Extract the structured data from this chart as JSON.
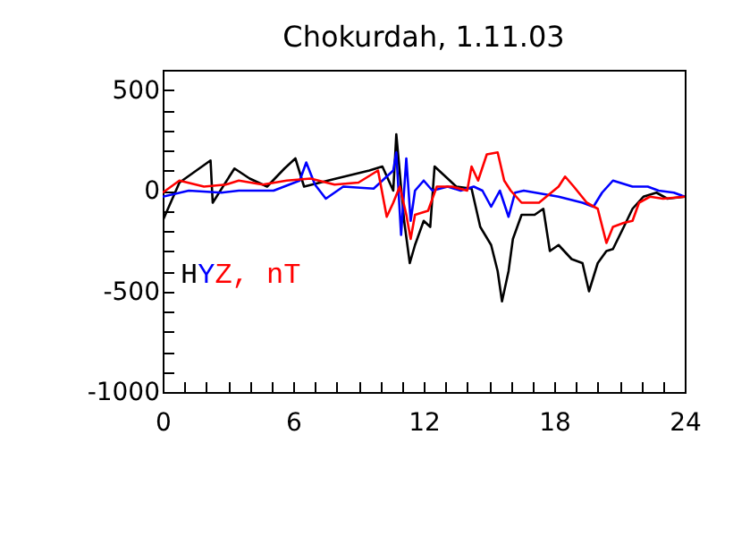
{
  "chart_data": {
    "type": "line",
    "title": "Chokurdah, 1.11.03",
    "xlim": [
      0,
      24
    ],
    "ylim": [
      -1000,
      600
    ],
    "xticks": [
      0,
      {
        "value": 1,
        "label": null
      },
      {
        "value": 2,
        "label": null
      },
      {
        "value": 3,
        "label": null
      },
      {
        "value": 4,
        "label": null
      },
      {
        "value": 5,
        "label": null
      },
      6,
      {
        "value": 7,
        "label": null
      },
      {
        "value": 8,
        "label": null
      },
      {
        "value": 9,
        "label": null
      },
      {
        "value": 10,
        "label": null
      },
      {
        "value": 11,
        "label": null
      },
      12,
      {
        "value": 13,
        "label": null
      },
      {
        "value": 14,
        "label": null
      },
      {
        "value": 15,
        "label": null
      },
      {
        "value": 16,
        "label": null
      },
      {
        "value": 17,
        "label": null
      },
      18,
      {
        "value": 19,
        "label": null
      },
      {
        "value": 20,
        "label": null
      },
      {
        "value": 21,
        "label": null
      },
      {
        "value": 22,
        "label": null
      },
      {
        "value": 23,
        "label": null
      },
      24
    ],
    "yticks": [
      -1000,
      {
        "value": -900,
        "label": null
      },
      {
        "value": -800,
        "label": null
      },
      {
        "value": -700,
        "label": null
      },
      {
        "value": -600,
        "label": null
      },
      -500,
      {
        "value": -400,
        "label": null
      },
      {
        "value": -300,
        "label": null
      },
      {
        "value": -200,
        "label": null
      },
      {
        "value": -100,
        "label": null
      },
      0,
      {
        "value": 100,
        "label": null
      },
      {
        "value": 200,
        "label": null
      },
      {
        "value": 300,
        "label": null
      },
      {
        "value": 400,
        "label": null
      },
      500
    ],
    "grid": false,
    "legend": "left",
    "marker": "none",
    "line_style": "solid",
    "series": [
      {
        "name": "H",
        "color": "#000000",
        "x": [
          0,
          0.77,
          2.2,
          2.3,
          3.3,
          4.0,
          4.8,
          5.6,
          6.1,
          6.5,
          7.6,
          9.5,
          10.1,
          10.6,
          10.74,
          11.1,
          11.36,
          11.6,
          12.0,
          12.3,
          12.5,
          12.9,
          13.5,
          14.2,
          14.6,
          15.1,
          15.4,
          15.6,
          15.9,
          16.1,
          16.5,
          17.1,
          17.5,
          17.8,
          18.2,
          18.8,
          19.3,
          19.6,
          20.0,
          20.4,
          20.7,
          21.2,
          21.6,
          22.1,
          22.7,
          23.2,
          24
        ],
        "values": [
          -150,
          40,
          150,
          -60,
          110,
          60,
          20,
          110,
          160,
          20,
          50,
          100,
          120,
          0,
          280,
          -150,
          -360,
          -270,
          -150,
          -180,
          120,
          80,
          20,
          10,
          -180,
          -270,
          -400,
          -550,
          -400,
          -240,
          -120,
          -120,
          -90,
          -300,
          -270,
          -340,
          -360,
          -500,
          -360,
          -300,
          -290,
          -180,
          -90,
          -30,
          -10,
          -40,
          -30
        ]
      },
      {
        "name": "Y",
        "color": "#0000ff",
        "x": [
          0,
          1.2,
          2.7,
          3.5,
          5.1,
          6.3,
          6.6,
          7.0,
          7.5,
          8.3,
          9.7,
          10.6,
          10.74,
          10.96,
          11.2,
          11.4,
          11.6,
          12.0,
          12.4,
          13.1,
          13.7,
          14.3,
          14.7,
          15.1,
          15.5,
          15.9,
          16.2,
          16.6,
          18.2,
          19.3,
          19.8,
          20.2,
          20.7,
          21.6,
          22.3,
          22.8,
          23.5,
          24
        ],
        "values": [
          -30,
          0,
          -10,
          0,
          0,
          50,
          140,
          30,
          -40,
          20,
          10,
          100,
          190,
          -220,
          160,
          -150,
          0,
          50,
          0,
          20,
          0,
          20,
          0,
          -80,
          0,
          -130,
          -10,
          0,
          -30,
          -60,
          -80,
          -10,
          50,
          20,
          20,
          0,
          -10,
          -30
        ]
      },
      {
        "name": "Z, nT",
        "color": "#ff0000",
        "x": [
          0,
          0.77,
          1.9,
          2.9,
          3.5,
          4.6,
          5.7,
          6.8,
          7.9,
          9.0,
          9.9,
          10.3,
          10.6,
          10.9,
          11.2,
          11.4,
          11.6,
          12.2,
          12.6,
          13.3,
          14.0,
          14.2,
          14.5,
          14.9,
          15.4,
          15.7,
          16.0,
          16.5,
          17.3,
          18.2,
          18.5,
          18.9,
          19.5,
          20.0,
          20.4,
          20.7,
          21.2,
          21.6,
          21.9,
          22.4,
          23.0,
          24
        ],
        "values": [
          -10,
          50,
          20,
          30,
          50,
          30,
          50,
          60,
          30,
          40,
          100,
          -130,
          -60,
          20,
          -120,
          -240,
          -120,
          -100,
          20,
          20,
          0,
          120,
          50,
          180,
          190,
          50,
          0,
          -60,
          -60,
          20,
          70,
          20,
          -60,
          -90,
          -260,
          -180,
          -160,
          -150,
          -60,
          -30,
          -40,
          -30
        ]
      }
    ]
  }
}
